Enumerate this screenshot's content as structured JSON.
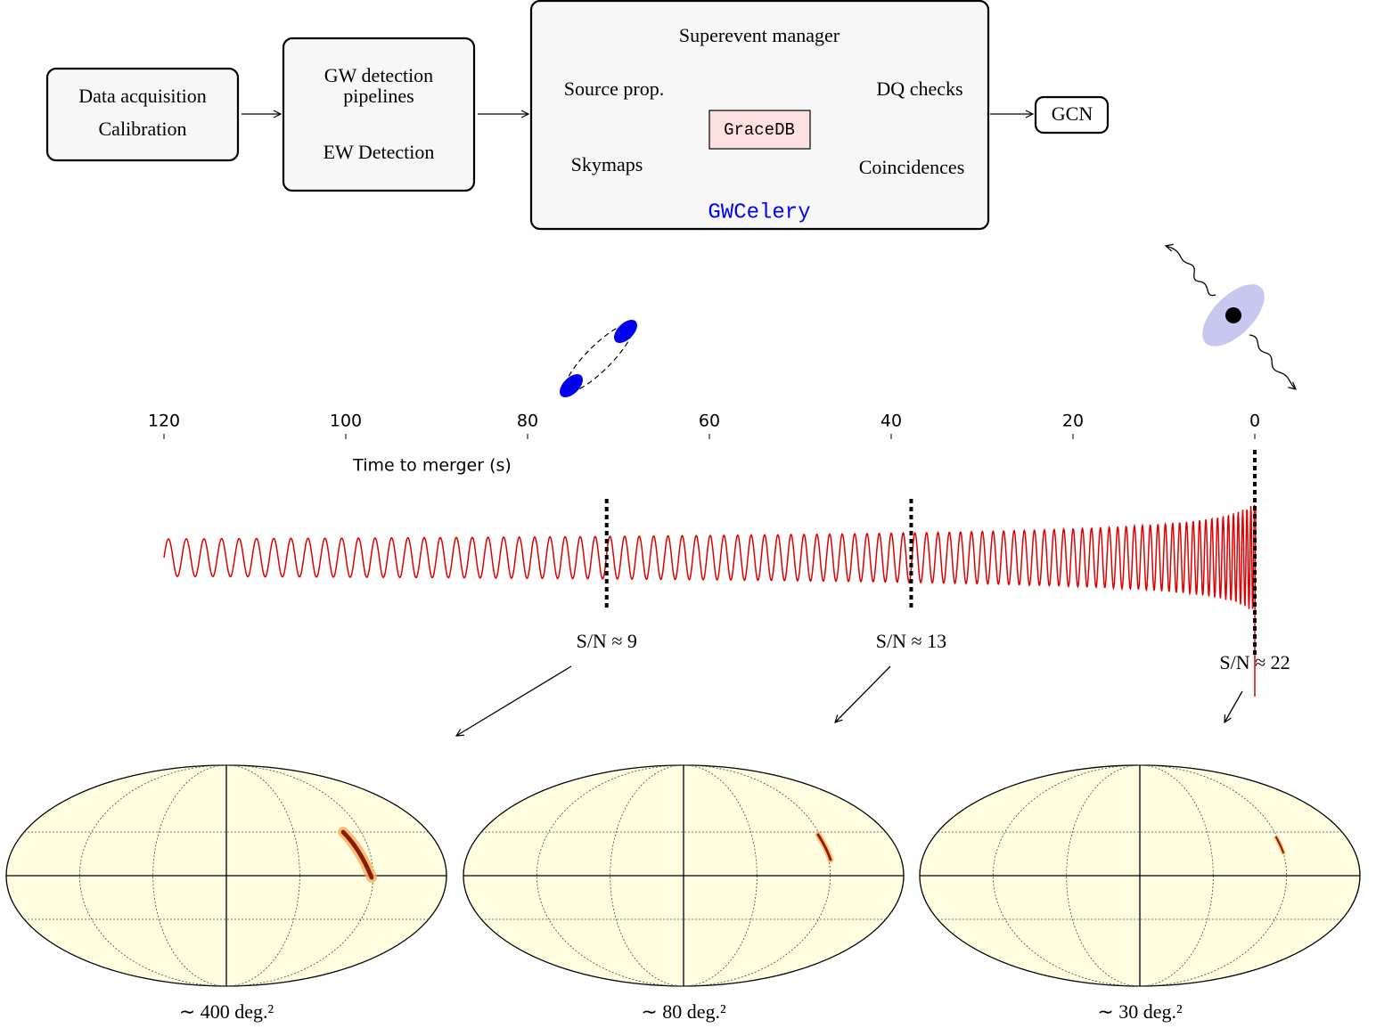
{
  "pipeline": {
    "acquisition": {
      "lines": [
        "Data acquisition",
        "Calibration"
      ]
    },
    "detection": {
      "lines": [
        "GW detection",
        "pipelines",
        "EW Detection"
      ]
    },
    "gwcelery": {
      "title": "Superevent manager",
      "items": [
        "Source prop.",
        "DQ checks",
        "Skymaps",
        "Coincidences"
      ],
      "database": "GraceDB",
      "name": "GWCelery"
    },
    "output": "GCN"
  },
  "timeline": {
    "axis_label": "Time to merger (s)",
    "ticks": [
      120,
      100,
      80,
      60,
      40,
      20,
      0
    ],
    "markers": [
      {
        "time": 71.3,
        "label": "S/N ≈ 9"
      },
      {
        "time": 37.8,
        "label": "S/N ≈ 13"
      },
      {
        "time": 0,
        "label": "S/N ≈ 22"
      }
    ]
  },
  "skymaps": [
    {
      "label": "∼ 400 deg.²"
    },
    {
      "label": "∼ 80 deg.²"
    },
    {
      "label": "∼ 30 deg.²"
    }
  ]
}
